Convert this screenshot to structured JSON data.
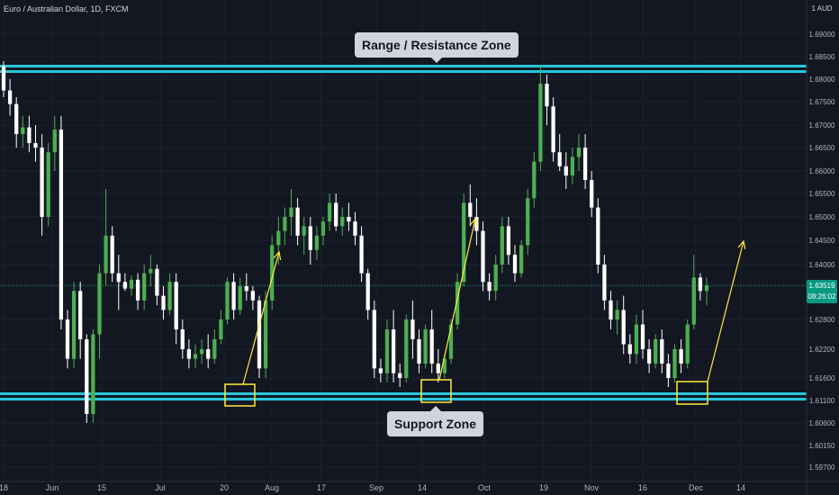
{
  "header": {
    "symbol": "Euro / Australian Dollar, 1D, FXCM",
    "currency": "1 AUD"
  },
  "colors": {
    "background": "#131722",
    "up_candle": "#4caf50",
    "down_candle": "#ffffff",
    "zone_line": "#26c6da",
    "annotation": "#ffeb3b",
    "price_badge": "#089981",
    "axis_text": "#b2b5be"
  },
  "price_badge": {
    "price": "1.63519",
    "countdown": "08:26:02"
  },
  "annotations": {
    "resistance_label": "Range / Resistance Zone",
    "support_label": "Support Zone"
  },
  "chart_data": {
    "type": "candlestick",
    "title": "Euro / Australian Dollar, 1D, FXCM",
    "y_axis": {
      "ticks": [
        "1.69000",
        "1.68500",
        "1.68000",
        "1.67500",
        "1.67000",
        "1.66500",
        "1.66000",
        "1.65500",
        "1.65000",
        "1.64500",
        "1.64000",
        "1.63500",
        "1.62800",
        "1.62200",
        "1.61600",
        "1.61100",
        "1.60600",
        "1.60150",
        "1.59700"
      ],
      "range": [
        1.5955,
        1.6935
      ],
      "position": "right"
    },
    "x_axis": {
      "ticks": [
        "18",
        "Jun",
        "15",
        "Jul",
        "20",
        "Aug",
        "17",
        "Sep",
        "14",
        "Oct",
        "19",
        "Nov",
        "16",
        "Dec",
        "14"
      ]
    },
    "current_price": 1.63519,
    "resistance_zone": [
      1.6817,
      1.6829
    ],
    "support_zone": [
      1.6113,
      1.6125
    ],
    "candles": [
      [
        1.6829,
        1.684,
        1.676,
        1.6775
      ],
      [
        1.6775,
        1.68,
        1.672,
        1.6745
      ],
      [
        1.6745,
        1.676,
        1.665,
        1.668
      ],
      [
        1.668,
        1.672,
        1.665,
        1.6695
      ],
      [
        1.6695,
        1.672,
        1.664,
        1.666
      ],
      [
        1.666,
        1.67,
        1.662,
        1.665
      ],
      [
        1.665,
        1.668,
        1.646,
        1.65
      ],
      [
        1.65,
        1.666,
        1.648,
        1.664
      ],
      [
        1.664,
        1.672,
        1.66,
        1.669
      ],
      [
        1.669,
        1.672,
        1.626,
        1.628
      ],
      [
        1.628,
        1.63,
        1.618,
        1.62
      ],
      [
        1.62,
        1.636,
        1.618,
        1.634
      ],
      [
        1.634,
        1.636,
        1.62,
        1.624
      ],
      [
        1.624,
        1.625,
        1.606,
        1.608
      ],
      [
        1.608,
        1.626,
        1.606,
        1.625
      ],
      [
        1.625,
        1.64,
        1.62,
        1.638
      ],
      [
        1.638,
        1.656,
        1.635,
        1.646
      ],
      [
        1.646,
        1.648,
        1.636,
        1.638
      ],
      [
        1.638,
        1.642,
        1.63,
        1.636
      ],
      [
        1.636,
        1.638,
        1.634,
        1.6345
      ],
      [
        1.6345,
        1.6375,
        1.633,
        1.6365
      ],
      [
        1.6365,
        1.638,
        1.63,
        1.632
      ],
      [
        1.632,
        1.64,
        1.63,
        1.638
      ],
      [
        1.638,
        1.642,
        1.635,
        1.639
      ],
      [
        1.639,
        1.64,
        1.631,
        1.633
      ],
      [
        1.633,
        1.635,
        1.628,
        1.63
      ],
      [
        1.63,
        1.638,
        1.629,
        1.636
      ],
      [
        1.636,
        1.638,
        1.623,
        1.626
      ],
      [
        1.626,
        1.628,
        1.62,
        1.622
      ],
      [
        1.622,
        1.624,
        1.618,
        1.62
      ],
      [
        1.62,
        1.623,
        1.618,
        1.621
      ],
      [
        1.621,
        1.624,
        1.619,
        1.622
      ],
      [
        1.622,
        1.625,
        1.618,
        1.62
      ],
      [
        1.62,
        1.626,
        1.619,
        1.624
      ],
      [
        1.624,
        1.63,
        1.623,
        1.628
      ],
      [
        1.628,
        1.637,
        1.627,
        1.636
      ],
      [
        1.636,
        1.638,
        1.628,
        1.63
      ],
      [
        1.63,
        1.637,
        1.629,
        1.635
      ],
      [
        1.635,
        1.638,
        1.632,
        1.634
      ],
      [
        1.634,
        1.635,
        1.63,
        1.632
      ],
      [
        1.632,
        1.633,
        1.616,
        1.618
      ],
      [
        1.618,
        1.634,
        1.616,
        1.632
      ],
      [
        1.632,
        1.646,
        1.63,
        1.644
      ],
      [
        1.644,
        1.65,
        1.64,
        1.647
      ],
      [
        1.647,
        1.652,
        1.644,
        1.65
      ],
      [
        1.65,
        1.656,
        1.646,
        1.652
      ],
      [
        1.652,
        1.654,
        1.644,
        1.646
      ],
      [
        1.646,
        1.65,
        1.642,
        1.648
      ],
      [
        1.648,
        1.65,
        1.64,
        1.643
      ],
      [
        1.643,
        1.648,
        1.641,
        1.646
      ],
      [
        1.646,
        1.65,
        1.644,
        1.649
      ],
      [
        1.649,
        1.655,
        1.647,
        1.653
      ],
      [
        1.653,
        1.655,
        1.647,
        1.648
      ],
      [
        1.648,
        1.652,
        1.646,
        1.65
      ],
      [
        1.65,
        1.653,
        1.647,
        1.649
      ],
      [
        1.649,
        1.651,
        1.644,
        1.646
      ],
      [
        1.646,
        1.648,
        1.636,
        1.638
      ],
      [
        1.638,
        1.639,
        1.628,
        1.63
      ],
      [
        1.63,
        1.632,
        1.616,
        1.618
      ],
      [
        1.618,
        1.62,
        1.615,
        1.617
      ],
      [
        1.617,
        1.628,
        1.615,
        1.626
      ],
      [
        1.626,
        1.63,
        1.615,
        1.617
      ],
      [
        1.617,
        1.619,
        1.614,
        1.616
      ],
      [
        1.616,
        1.629,
        1.615,
        1.628
      ],
      [
        1.628,
        1.632,
        1.62,
        1.624
      ],
      [
        1.624,
        1.626,
        1.617,
        1.619
      ],
      [
        1.619,
        1.627,
        1.618,
        1.626
      ],
      [
        1.626,
        1.63,
        1.617,
        1.619
      ],
      [
        1.619,
        1.622,
        1.615,
        1.617
      ],
      [
        1.617,
        1.621,
        1.616,
        1.62
      ],
      [
        1.62,
        1.628,
        1.619,
        1.627
      ],
      [
        1.627,
        1.638,
        1.626,
        1.636
      ],
      [
        1.636,
        1.655,
        1.635,
        1.653
      ],
      [
        1.653,
        1.657,
        1.648,
        1.65
      ],
      [
        1.65,
        1.654,
        1.644,
        1.647
      ],
      [
        1.647,
        1.649,
        1.634,
        1.636
      ],
      [
        1.636,
        1.638,
        1.632,
        1.634
      ],
      [
        1.634,
        1.642,
        1.632,
        1.64
      ],
      [
        1.64,
        1.65,
        1.638,
        1.648
      ],
      [
        1.648,
        1.65,
        1.64,
        1.642
      ],
      [
        1.642,
        1.644,
        1.636,
        1.638
      ],
      [
        1.638,
        1.645,
        1.637,
        1.644
      ],
      [
        1.644,
        1.656,
        1.642,
        1.654
      ],
      [
        1.654,
        1.664,
        1.652,
        1.662
      ],
      [
        1.662,
        1.683,
        1.66,
        1.679
      ],
      [
        1.679,
        1.681,
        1.67,
        1.674
      ],
      [
        1.674,
        1.676,
        1.662,
        1.664
      ],
      [
        1.664,
        1.668,
        1.66,
        1.661
      ],
      [
        1.661,
        1.664,
        1.656,
        1.659
      ],
      [
        1.659,
        1.665,
        1.657,
        1.663
      ],
      [
        1.663,
        1.668,
        1.66,
        1.665
      ],
      [
        1.665,
        1.668,
        1.656,
        1.658
      ],
      [
        1.658,
        1.66,
        1.65,
        1.652
      ],
      [
        1.652,
        1.654,
        1.638,
        1.64
      ],
      [
        1.64,
        1.642,
        1.63,
        1.632
      ],
      [
        1.632,
        1.634,
        1.626,
        1.628
      ],
      [
        1.628,
        1.632,
        1.625,
        1.63
      ],
      [
        1.63,
        1.633,
        1.621,
        1.623
      ],
      [
        1.623,
        1.625,
        1.619,
        1.621
      ],
      [
        1.621,
        1.629,
        1.619,
        1.627
      ],
      [
        1.627,
        1.63,
        1.62,
        1.622
      ],
      [
        1.622,
        1.624,
        1.617,
        1.619
      ],
      [
        1.619,
        1.625,
        1.618,
        1.624
      ],
      [
        1.624,
        1.626,
        1.617,
        1.619
      ],
      [
        1.619,
        1.621,
        1.614,
        1.616
      ],
      [
        1.616,
        1.623,
        1.615,
        1.622
      ],
      [
        1.622,
        1.624,
        1.617,
        1.619
      ],
      [
        1.619,
        1.628,
        1.618,
        1.627
      ],
      [
        1.627,
        1.642,
        1.626,
        1.637
      ],
      [
        1.637,
        1.638,
        1.632,
        1.634
      ],
      [
        1.634,
        1.637,
        1.631,
        1.6352
      ]
    ]
  }
}
